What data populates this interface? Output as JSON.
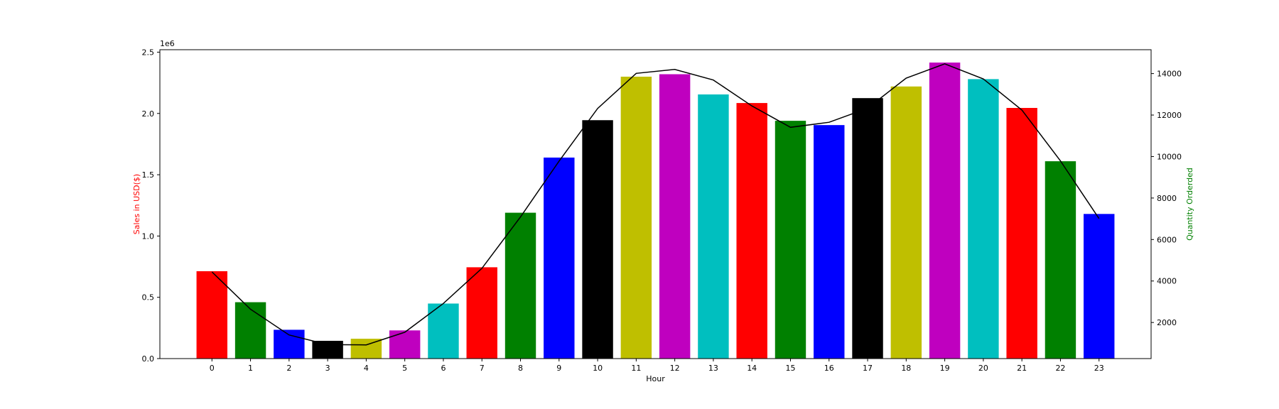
{
  "chart_data": {
    "type": "bar",
    "xlabel": "Hour",
    "ylabel_left": "Sales in USD($)",
    "ylabel_right": "Quantity Orderded",
    "ylabel_left_color": "#ff0000",
    "ylabel_right_color": "#008000",
    "left_offset_text": "1e6",
    "left_ylim": [
      0,
      2.52
    ],
    "left_yticks": [
      0.0,
      0.5,
      1.0,
      1.5,
      2.0,
      2.5
    ],
    "left_ytick_labels": [
      "0.0",
      "0.5",
      "1.0",
      "1.5",
      "2.0",
      "2.5"
    ],
    "right_ylim": [
      260,
      15150
    ],
    "right_yticks": [
      2000,
      4000,
      6000,
      8000,
      10000,
      12000,
      14000
    ],
    "right_ytick_labels": [
      "2000",
      "4000",
      "6000",
      "8000",
      "10000",
      "12000",
      "14000"
    ],
    "categories": [
      "0",
      "1",
      "2",
      "3",
      "4",
      "5",
      "6",
      "7",
      "8",
      "9",
      "10",
      "11",
      "12",
      "13",
      "14",
      "15",
      "16",
      "17",
      "18",
      "19",
      "20",
      "21",
      "22",
      "23"
    ],
    "bar_colors": [
      "#ff0000",
      "#008000",
      "#0000ff",
      "#000000",
      "#bfbf00",
      "#bf00bf",
      "#00bfbf"
    ],
    "line_color": "#000000",
    "grid": false,
    "series": [
      {
        "name": "Sales in USD($)",
        "kind": "bar",
        "axis": "left",
        "values": [
          713000,
          460000,
          235000,
          145000,
          162000,
          230000,
          449000,
          745000,
          1190000,
          1640000,
          1945000,
          2300000,
          2320000,
          2155000,
          2085000,
          1940000,
          1905000,
          2125000,
          2220000,
          2415000,
          2280000,
          2045000,
          1610000,
          1180000
        ]
      },
      {
        "name": "Quantity Orderded",
        "kind": "line",
        "axis": "right",
        "values": [
          4440,
          2640,
          1400,
          930,
          920,
          1530,
          2920,
          4610,
          7090,
          9780,
          12320,
          14010,
          14200,
          13690,
          12440,
          11410,
          11650,
          12330,
          13780,
          14470,
          13740,
          12240,
          9790,
          7010
        ]
      }
    ]
  }
}
